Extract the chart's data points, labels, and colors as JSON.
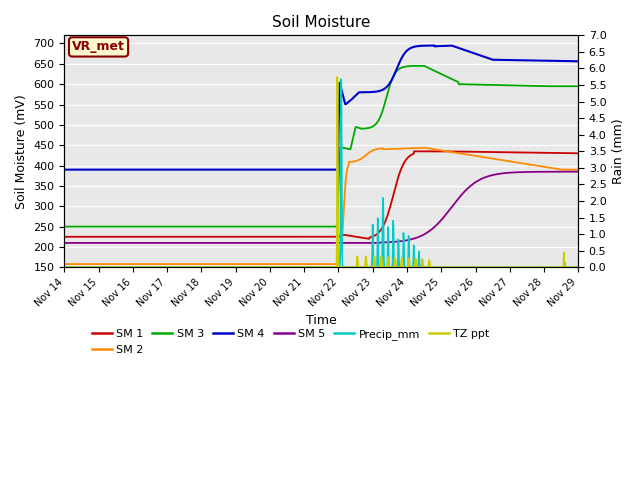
{
  "title": "Soil Moisture",
  "xlabel": "Time",
  "ylabel_left": "Soil Moisture (mV)",
  "ylabel_right": "Rain (mm)",
  "ylim_left": [
    150,
    720
  ],
  "ylim_right": [
    0.0,
    7.0
  ],
  "yticks_left": [
    150,
    200,
    250,
    300,
    350,
    400,
    450,
    500,
    550,
    600,
    650,
    700
  ],
  "yticks_right": [
    0.0,
    0.5,
    1.0,
    1.5,
    2.0,
    2.5,
    3.0,
    3.5,
    4.0,
    4.5,
    5.0,
    5.5,
    6.0,
    6.5,
    7.0
  ],
  "vr_met_label": "VR_met",
  "annotation_color": "#8B0000",
  "annotation_bg": "#FFFACD",
  "legend_entries": [
    "SM 1",
    "SM 2",
    "SM 3",
    "SM 4",
    "SM 5",
    "Precip_mm",
    "TZ ppt"
  ],
  "legend_colors": [
    "#CC0000",
    "#FF8C00",
    "#00AA00",
    "#0000CC",
    "#8B008B",
    "#00CCCC",
    "#CCCC00"
  ],
  "bg_color": "#e8e8e8",
  "grid_color": "#ffffff"
}
